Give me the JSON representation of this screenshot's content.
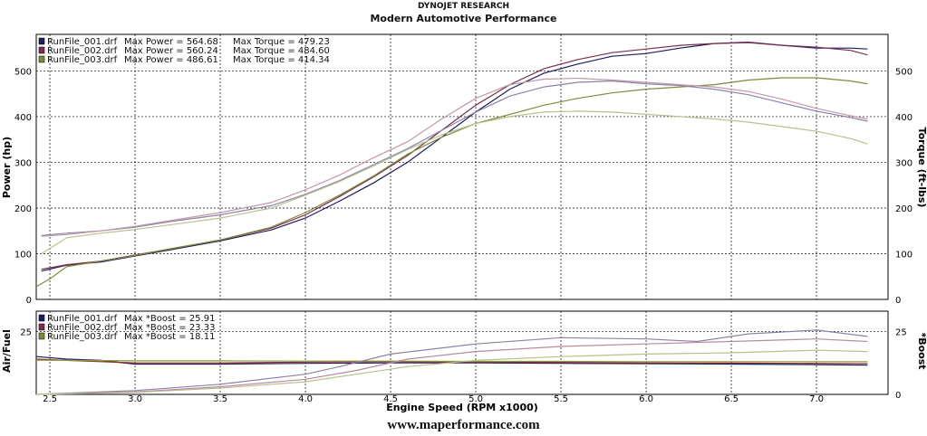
{
  "header": {
    "brand": "DYNOJET RESEARCH",
    "title": "Modern Automotive Performance"
  },
  "footer": {
    "website": "www.maperformance.com"
  },
  "chart_data": {
    "type": "line",
    "x_label": "Engine Speed (RPM x1000)",
    "x_range": [
      2.42,
      7.42
    ],
    "x_ticks": [
      "2.5",
      "3.0",
      "3.5",
      "4.0",
      "4.5",
      "5.0",
      "5.5",
      "6.0",
      "6.5",
      "7.0"
    ],
    "grid": true,
    "upper": {
      "ylabel_left": "Power (hp)",
      "ylabel_right": "Torque (ft-lbs)",
      "ylim": [
        0,
        580
      ],
      "y_ticks": [
        "0",
        "100",
        "200",
        "300",
        "400",
        "500"
      ],
      "legend": [
        {
          "file": "RunFile_001.drf",
          "power_label": "Max Power = 564.68",
          "torque_label": "Max Torque = 479.23",
          "color": "#1c1c5e"
        },
        {
          "file": "RunFile_002.drf",
          "power_label": "Max Power = 560.24",
          "torque_label": "Max Torque = 484.60",
          "color": "#7a2f4c"
        },
        {
          "file": "RunFile_003.drf",
          "power_label": "Max Power = 486.61",
          "torque_label": "Max Torque = 414.34",
          "color": "#7c8a3a"
        }
      ],
      "series": [
        {
          "name": "RunFile_001.drf",
          "measure": "power",
          "color": "#1c1c5e",
          "x": [
            2.45,
            2.6,
            2.8,
            3.0,
            3.2,
            3.5,
            3.8,
            4.0,
            4.2,
            4.4,
            4.6,
            4.8,
            5.0,
            5.2,
            5.4,
            5.6,
            5.8,
            6.0,
            6.2,
            6.4,
            6.6,
            6.8,
            7.0,
            7.2,
            7.3
          ],
          "values": [
            62,
            75,
            82,
            95,
            108,
            128,
            152,
            178,
            215,
            255,
            300,
            355,
            410,
            460,
            495,
            515,
            532,
            538,
            550,
            560,
            563,
            556,
            550,
            550,
            548
          ]
        },
        {
          "name": "RunFile_002.drf",
          "measure": "power",
          "color": "#7a2f4c",
          "x": [
            2.45,
            2.6,
            2.8,
            3.0,
            3.2,
            3.5,
            3.8,
            4.0,
            4.2,
            4.4,
            4.6,
            4.8,
            5.0,
            5.2,
            5.4,
            5.6,
            5.8,
            6.0,
            6.2,
            6.4,
            6.6,
            6.8,
            7.0,
            7.2,
            7.3
          ],
          "values": [
            66,
            76,
            84,
            97,
            110,
            130,
            156,
            185,
            225,
            268,
            315,
            370,
            425,
            470,
            505,
            525,
            540,
            548,
            556,
            560,
            562,
            556,
            552,
            545,
            535
          ]
        },
        {
          "name": "RunFile_003.drf",
          "measure": "power",
          "color": "#7c8a3a",
          "x": [
            2.42,
            2.5,
            2.6,
            2.8,
            3.0,
            3.2,
            3.5,
            3.8,
            4.0,
            4.2,
            4.4,
            4.6,
            4.8,
            5.0,
            5.2,
            5.4,
            5.6,
            5.8,
            6.0,
            6.2,
            6.4,
            6.6,
            6.8,
            7.0,
            7.2,
            7.3
          ],
          "values": [
            28,
            45,
            72,
            84,
            96,
            110,
            130,
            158,
            190,
            228,
            270,
            318,
            355,
            385,
            405,
            425,
            440,
            452,
            460,
            465,
            470,
            480,
            485,
            485,
            478,
            472
          ]
        },
        {
          "name": "RunFile_001.drf",
          "measure": "torque",
          "color": "#8c82a8",
          "x": [
            2.45,
            2.6,
            2.8,
            3.0,
            3.2,
            3.5,
            3.8,
            4.0,
            4.2,
            4.4,
            4.6,
            4.8,
            5.0,
            5.2,
            5.4,
            5.6,
            5.8,
            6.0,
            6.2,
            6.4,
            6.6,
            6.8,
            7.0,
            7.2,
            7.3
          ],
          "values": [
            140,
            145,
            150,
            158,
            170,
            185,
            205,
            230,
            260,
            295,
            330,
            370,
            410,
            445,
            465,
            475,
            478,
            472,
            468,
            460,
            448,
            430,
            412,
            398,
            390
          ]
        },
        {
          "name": "RunFile_002.drf",
          "measure": "torque",
          "color": "#c09aaa",
          "x": [
            2.45,
            2.6,
            2.8,
            3.0,
            3.2,
            3.5,
            3.8,
            4.0,
            4.2,
            4.4,
            4.6,
            4.8,
            5.0,
            5.2,
            5.4,
            5.6,
            5.8,
            6.0,
            6.2,
            6.4,
            6.6,
            6.8,
            7.0,
            7.2,
            7.3
          ],
          "values": [
            138,
            142,
            150,
            160,
            172,
            190,
            212,
            240,
            272,
            310,
            345,
            395,
            440,
            470,
            482,
            484,
            480,
            475,
            470,
            465,
            455,
            438,
            418,
            402,
            395
          ]
        },
        {
          "name": "RunFile_003.drf",
          "measure": "torque",
          "color": "#b8c08c",
          "x": [
            2.45,
            2.6,
            2.8,
            3.0,
            3.2,
            3.5,
            3.8,
            4.0,
            4.2,
            4.4,
            4.6,
            4.8,
            5.0,
            5.2,
            5.4,
            5.6,
            5.8,
            6.0,
            6.2,
            6.4,
            6.6,
            6.8,
            7.0,
            7.2,
            7.3
          ],
          "values": [
            100,
            135,
            145,
            153,
            163,
            178,
            200,
            228,
            258,
            292,
            328,
            360,
            385,
            400,
            410,
            412,
            410,
            405,
            400,
            395,
            388,
            378,
            368,
            352,
            340
          ]
        }
      ]
    },
    "lower": {
      "ylabel_left": "Air/Fuel",
      "ylabel_right": "*Boost",
      "ylim": [
        0,
        33
      ],
      "y_ticks_left": [
        "25"
      ],
      "y_ticks_right": [
        "0",
        "25"
      ],
      "legend": [
        {
          "file": "RunFile_001.drf",
          "boost_label": "Max *Boost = 25.91",
          "color": "#1c1c5e"
        },
        {
          "file": "RunFile_002.drf",
          "boost_label": "Max *Boost = 23.33",
          "color": "#7a2f4c"
        },
        {
          "file": "RunFile_003.drf",
          "boost_label": "Max *Boost = 18.11",
          "color": "#7c8a3a"
        }
      ],
      "series": [
        {
          "name": "RunFile_001.drf",
          "measure": "air_fuel",
          "color": "#1c1c5e",
          "x": [
            2.42,
            2.6,
            2.8,
            3.0,
            3.5,
            4.0,
            4.5,
            5.0,
            5.5,
            6.0,
            6.5,
            7.0,
            7.3
          ],
          "values": [
            15,
            14,
            13.5,
            12,
            12,
            12.3,
            12.5,
            12.5,
            12.3,
            12.2,
            12,
            11.8,
            11.6
          ]
        },
        {
          "name": "RunFile_002.drf",
          "measure": "air_fuel",
          "color": "#8a2a2a",
          "x": [
            2.42,
            2.6,
            2.8,
            3.0,
            3.5,
            4.0,
            4.5,
            5.0,
            5.5,
            6.0,
            6.5,
            7.0,
            7.3
          ],
          "values": [
            14,
            13.5,
            13,
            12.5,
            12.5,
            12.8,
            13,
            12.8,
            12.7,
            12.5,
            12.4,
            12.3,
            12.2
          ]
        },
        {
          "name": "RunFile_003.drf",
          "measure": "air_fuel",
          "color": "#8a9a3a",
          "x": [
            2.42,
            2.6,
            2.8,
            3.0,
            3.5,
            4.0,
            4.5,
            5.0,
            5.5,
            6.0,
            6.5,
            7.0,
            7.3
          ],
          "values": [
            13.6,
            13.5,
            13.4,
            13.3,
            13.3,
            13.2,
            13.2,
            13.1,
            13.1,
            13,
            13,
            13,
            13
          ]
        },
        {
          "name": "RunFile_001.drf",
          "measure": "boost",
          "color": "#8c82a8",
          "x": [
            2.42,
            2.6,
            3.0,
            3.5,
            4.0,
            4.2,
            4.5,
            5.0,
            5.5,
            6.0,
            6.3,
            6.6,
            7.0,
            7.3
          ],
          "values": [
            0,
            0.5,
            1.5,
            4,
            8,
            11,
            16,
            20,
            22.5,
            22,
            21,
            24,
            25.5,
            23
          ]
        },
        {
          "name": "RunFile_002.drf",
          "measure": "boost",
          "color": "#b88aa0",
          "x": [
            2.42,
            2.6,
            3.0,
            3.5,
            4.0,
            4.3,
            4.6,
            5.0,
            5.5,
            6.0,
            6.5,
            7.0,
            7.3
          ],
          "values": [
            0,
            0.3,
            1,
            3,
            6,
            9.5,
            14,
            17,
            19,
            20,
            21,
            22,
            21
          ]
        },
        {
          "name": "RunFile_003.drf",
          "measure": "boost",
          "color": "#b8c08c",
          "x": [
            2.42,
            2.6,
            3.0,
            3.5,
            4.0,
            4.3,
            4.6,
            5.0,
            5.5,
            6.0,
            6.5,
            7.0,
            7.3
          ],
          "values": [
            0,
            0.2,
            0.8,
            2.5,
            5,
            8,
            11,
            13.5,
            15,
            16,
            16.5,
            17.5,
            17
          ]
        }
      ]
    }
  }
}
